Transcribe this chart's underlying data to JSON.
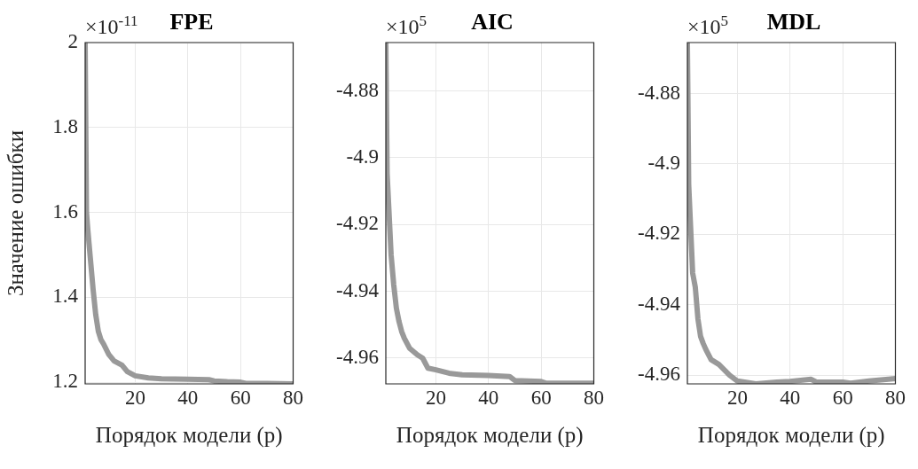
{
  "chart_data": [
    {
      "type": "line",
      "title": "FPE",
      "xlabel": "Порядок модели (p)",
      "ylabel": "Значение ошибки",
      "annotations": [
        "×10$^{-11}$"
      ],
      "xlim": [
        1,
        80
      ],
      "xticks": [
        20,
        40,
        60,
        80
      ],
      "ylim": [
        1.196,
        2
      ],
      "yticks": [
        1.2,
        1.4,
        1.6,
        1.8,
        2
      ],
      "grid": true,
      "x": [
        1,
        1.5,
        2,
        3,
        4,
        5,
        6,
        7,
        8,
        10,
        12,
        15,
        17,
        20,
        25,
        30,
        40,
        48,
        50,
        55,
        60,
        62,
        70,
        80
      ],
      "series": [
        {
          "color": "#999999",
          "values": [
            2,
            1.6,
            1.56,
            1.49,
            1.42,
            1.36,
            1.32,
            1.3,
            1.29,
            1.265,
            1.25,
            1.24,
            1.225,
            1.215,
            1.21,
            1.208,
            1.207,
            1.206,
            1.203,
            1.201,
            1.2,
            1.197,
            1.197,
            1.196
          ]
        }
      ]
    },
    {
      "type": "line",
      "title": "AIC",
      "xlabel": "Порядок модели (p)",
      "annotations": [
        "×10$^{5}$"
      ],
      "xlim": [
        1,
        80
      ],
      "xticks": [
        20,
        40,
        60,
        80
      ],
      "ylim": [
        -4.9677,
        -4.8655
      ],
      "yticks": [
        -4.96,
        -4.94,
        -4.92,
        -4.9,
        -4.88
      ],
      "grid": true,
      "x": [
        1,
        1.5,
        3,
        4,
        5,
        6,
        7,
        8,
        10,
        13,
        15,
        17,
        20,
        25,
        30,
        40,
        48,
        50,
        60,
        62,
        80
      ],
      "series": [
        {
          "color": "#999999",
          "values": [
            -4.8655,
            -4.9048,
            -4.929,
            -4.938,
            -4.945,
            -4.949,
            -4.952,
            -4.954,
            -4.957,
            -4.959,
            -4.96,
            -4.963,
            -4.9635,
            -4.9645,
            -4.965,
            -4.9652,
            -4.9655,
            -4.9667,
            -4.967,
            -4.9675,
            -4.9675
          ]
        }
      ]
    },
    {
      "type": "line",
      "title": "MDL",
      "xlabel": "Порядок модели (p)",
      "annotations": [
        "×10$^{5}$"
      ],
      "xlim": [
        1,
        80
      ],
      "xticks": [
        20,
        40,
        60,
        80
      ],
      "ylim": [
        -4.9625,
        -4.8655
      ],
      "yticks": [
        -4.96,
        -4.94,
        -4.92,
        -4.9,
        -4.88
      ],
      "grid": true,
      "x": [
        1,
        1.5,
        3,
        4,
        5,
        6,
        7,
        8,
        10,
        13,
        15,
        17,
        20,
        27,
        35,
        40,
        48,
        50,
        60,
        63,
        70,
        80
      ],
      "series": [
        {
          "color": "#999999",
          "values": [
            -4.8655,
            -4.9059,
            -4.931,
            -4.935,
            -4.944,
            -4.949,
            -4.951,
            -4.9527,
            -4.9556,
            -4.957,
            -4.9585,
            -4.96,
            -4.9617,
            -4.9625,
            -4.962,
            -4.9618,
            -4.9612,
            -4.962,
            -4.962,
            -4.9623,
            -4.9617,
            -4.961
          ]
        }
      ]
    }
  ]
}
